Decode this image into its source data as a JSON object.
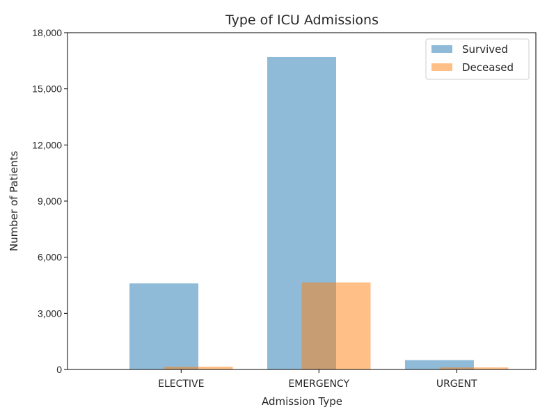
{
  "chart_data": {
    "type": "bar",
    "title": "Type of ICU Admissions",
    "xlabel": "Admission Type",
    "ylabel": "Number of Patients",
    "categories": [
      "ELECTIVE",
      "EMERGENCY",
      "URGENT"
    ],
    "series": [
      {
        "name": "Survived",
        "values": [
          4600,
          16700,
          500
        ],
        "color": "#1f77b4",
        "opacity": 0.5
      },
      {
        "name": "Deceased",
        "values": [
          150,
          4650,
          110
        ],
        "color": "#ff7f0e",
        "opacity": 0.5
      }
    ],
    "ylim": [
      0,
      18000
    ],
    "yticks": [
      0,
      3000,
      6000,
      9000,
      12000,
      15000,
      18000
    ],
    "ytick_labels": [
      "0",
      "3,000",
      "6,000",
      "9,000",
      "12,000",
      "15,000",
      "18,000"
    ],
    "grid": false,
    "legend_position": "top-right"
  }
}
